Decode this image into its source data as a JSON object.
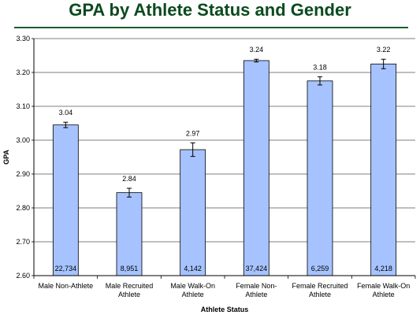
{
  "chart_data": {
    "type": "bar",
    "title": "GPA by Athlete Status and Gender",
    "xlabel": "Athlete Status",
    "ylabel": "GPA",
    "ylim": [
      2.6,
      3.3
    ],
    "yticks": [
      "2.60",
      "2.70",
      "2.80",
      "2.90",
      "3.00",
      "3.10",
      "3.20",
      "3.30"
    ],
    "grid": true,
    "categories": [
      [
        "Male Non-Athlete"
      ],
      [
        "Male Recruited",
        "Athlete"
      ],
      [
        "Male Walk-On",
        "Athlete"
      ],
      [
        "Female Non-",
        "Athlete"
      ],
      [
        "Female Recruited",
        "Athlete"
      ],
      [
        "Female Walk-On",
        "Athlete"
      ]
    ],
    "values": [
      3.04,
      2.84,
      2.97,
      3.24,
      3.18,
      3.22
    ],
    "value_labels": [
      "3.04",
      "2.84",
      "2.97",
      "3.24",
      "3.18",
      "3.22"
    ],
    "counts": [
      "22,734",
      "8,951",
      "4,142",
      "37,424",
      "6,259",
      "4,218"
    ],
    "plotted_means": [
      3.045,
      2.845,
      2.972,
      3.235,
      3.175,
      3.225
    ],
    "error_lower": [
      3.037,
      2.832,
      2.952,
      3.231,
      3.163,
      3.211
    ],
    "error_upper": [
      3.053,
      2.858,
      2.992,
      3.239,
      3.187,
      3.239
    ],
    "bar_color": "#a6c3ff",
    "bar_stroke": "#000000"
  }
}
